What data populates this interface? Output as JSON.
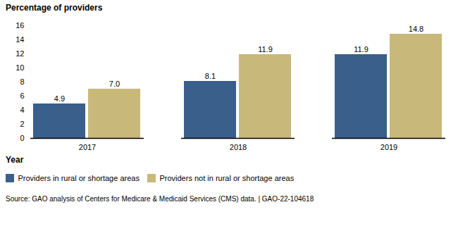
{
  "chart_data": {
    "type": "bar",
    "ylabel": "Percentage of providers",
    "xlabel": "Year",
    "categories": [
      "2017",
      "2018",
      "2019"
    ],
    "series": [
      {
        "name": "Providers in rural or shortage areas",
        "color": "#3A5F8A",
        "values": [
          4.9,
          8.1,
          11.9
        ],
        "value_labels": [
          "4.9",
          "8.1",
          "11.9"
        ]
      },
      {
        "name": "Providers not in rural or shortage areas",
        "color": "#C8B87A",
        "values": [
          7.0,
          11.9,
          14.8
        ],
        "value_labels": [
          "7.0",
          "11.9",
          "14.8"
        ]
      }
    ],
    "ylim": [
      0,
      16
    ],
    "yticks": [
      0,
      2,
      4,
      6,
      8,
      10,
      12,
      14,
      16
    ],
    "grid": false,
    "legend": "lower left",
    "data_labels": true,
    "annotations": [
      "Source: GAO analysis of Centers for Medicare & Medicaid Services (CMS) data.  |  GAO-22-104618"
    ]
  }
}
